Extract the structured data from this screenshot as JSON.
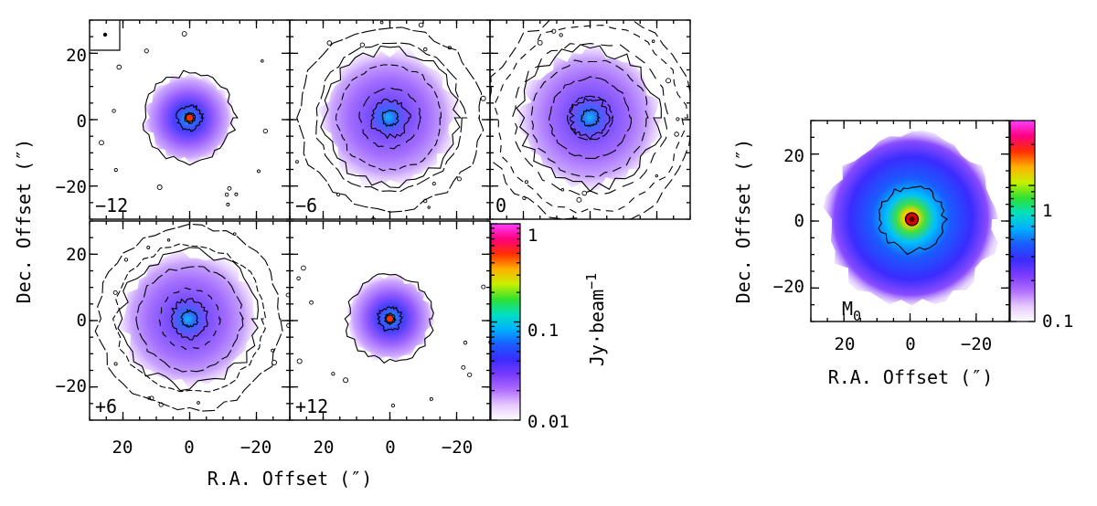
{
  "chart_data": {
    "type": "heatmap",
    "channel_panels": [
      {
        "label": "−12",
        "velocity": -12,
        "extent": 0.58,
        "rings": []
      },
      {
        "label": "−6",
        "velocity": -6,
        "extent": 0.88,
        "rings": [
          0.3,
          0.52,
          0.74,
          0.92
        ]
      },
      {
        "label": "0",
        "velocity": 0,
        "extent": 0.9,
        "rings": [
          0.22,
          0.4,
          0.58,
          0.76,
          0.94,
          1.05
        ]
      },
      {
        "label": "+6",
        "velocity": 6,
        "extent": 0.88,
        "rings": [
          0.3,
          0.52,
          0.74,
          0.92
        ]
      },
      {
        "label": "+12",
        "velocity": 12,
        "extent": 0.56,
        "rings": []
      }
    ],
    "channel_axes": {
      "xlabel": "R.A. Offset (″)",
      "ylabel": "Dec. Offset (″)",
      "xlim": [
        30,
        -30
      ],
      "ylim": [
        -30,
        30
      ],
      "x_tick_values": [
        20,
        0,
        -20
      ],
      "x_tick_labels": [
        "20",
        "0",
        "−20"
      ],
      "y_tick_values": [
        20,
        0,
        -20
      ],
      "y_tick_labels": [
        "20",
        "0",
        "−20"
      ]
    },
    "channel_colorbar": {
      "label": "Jy·beam",
      "label_exponent": "−1",
      "scale": "log",
      "range": [
        0.01,
        1
      ],
      "tick_labels": [
        "1",
        "0.1",
        "0.01"
      ],
      "tick_values": [
        1,
        0.1,
        0.01
      ]
    },
    "moment0_panel": {
      "label": "M",
      "label_subscript": "0",
      "extent": 0.95,
      "xlabel": "R.A. Offset (″)",
      "ylabel": "Dec. Offset (″)",
      "xlim": [
        30,
        -30
      ],
      "ylim": [
        -30,
        30
      ],
      "x_tick_values": [
        20,
        0,
        -20
      ],
      "x_tick_labels": [
        "20",
        "0",
        "−20"
      ],
      "y_tick_values": [
        20,
        0,
        -20
      ],
      "y_tick_labels": [
        "20",
        "0",
        "−20"
      ]
    },
    "moment0_colorbar": {
      "scale": "log",
      "range": [
        0.1,
        3
      ],
      "tick_labels": [
        "1",
        "0.1"
      ],
      "tick_values": [
        1,
        0.1
      ]
    },
    "colormap": [
      "#ffffff",
      "#e6c8ff",
      "#b06cff",
      "#7a3cff",
      "#3a2cff",
      "#1a5cff",
      "#00b0ff",
      "#00e0c0",
      "#30e030",
      "#c8f000",
      "#ffb000",
      "#ff3000",
      "#ff0080",
      "#ff40ff"
    ]
  }
}
